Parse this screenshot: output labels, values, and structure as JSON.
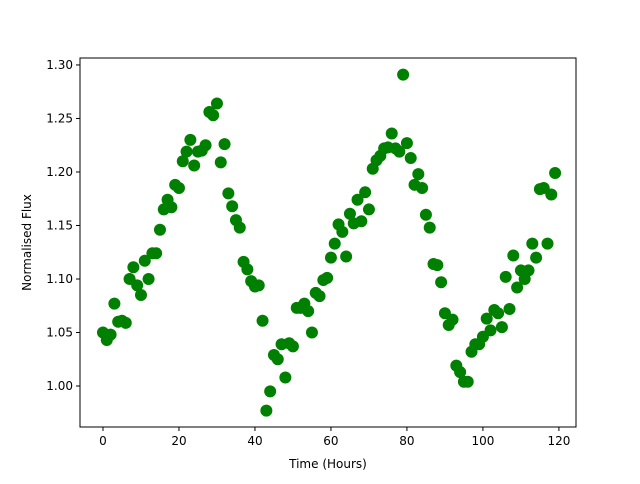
{
  "chart_data": {
    "type": "scatter",
    "title": "",
    "xlabel": "Time (Hours)",
    "ylabel": "Normalised Flux",
    "xlim": [
      -6.05,
      124.5
    ],
    "ylim": [
      0.9617,
      1.3065
    ],
    "xticks": [
      0,
      20,
      40,
      60,
      80,
      100,
      120
    ],
    "xtick_labels": [
      "0",
      "20",
      "40",
      "60",
      "80",
      "100",
      "120"
    ],
    "yticks": [
      1.0,
      1.05,
      1.1,
      1.15,
      1.2,
      1.25,
      1.3
    ],
    "ytick_labels": [
      "1.00",
      "1.05",
      "1.10",
      "1.15",
      "1.20",
      "1.25",
      "1.30"
    ],
    "grid": false,
    "marker_color": "#008000",
    "x": [
      0,
      1,
      2,
      3,
      4,
      5,
      6,
      7,
      8,
      9,
      10,
      11,
      12,
      13,
      14,
      15,
      16,
      17,
      18,
      19,
      20,
      21,
      22,
      23,
      24,
      25,
      26,
      27,
      28,
      29,
      30,
      31,
      32,
      33,
      34,
      35,
      36,
      37,
      38,
      39,
      40,
      41,
      42,
      43,
      44,
      45,
      46,
      47,
      48,
      49,
      50,
      51,
      52,
      53,
      54,
      55,
      56,
      57,
      58,
      59,
      60,
      61,
      62,
      63,
      64,
      65,
      66,
      67,
      68,
      69,
      70,
      71,
      72,
      73,
      74,
      75,
      76,
      77,
      78,
      79,
      80,
      81,
      82,
      83,
      84,
      85,
      86,
      87,
      88,
      89,
      90,
      91,
      92,
      93,
      94,
      95,
      96,
      97,
      98,
      99,
      100,
      101,
      102,
      103,
      104,
      105,
      106,
      107,
      108,
      109,
      110,
      111,
      112,
      113,
      114,
      115,
      116,
      117,
      118,
      119
    ],
    "y": [
      1.05,
      1.043,
      1.048,
      1.077,
      1.06,
      1.061,
      1.059,
      1.1,
      1.111,
      1.094,
      1.085,
      1.117,
      1.1,
      1.124,
      1.124,
      1.146,
      1.165,
      1.174,
      1.167,
      1.188,
      1.185,
      1.21,
      1.219,
      1.23,
      1.206,
      1.219,
      1.22,
      1.225,
      1.256,
      1.253,
      1.264,
      1.209,
      1.226,
      1.18,
      1.168,
      1.155,
      1.148,
      1.116,
      1.109,
      1.098,
      1.093,
      1.094,
      1.061,
      0.977,
      0.995,
      1.029,
      1.025,
      1.039,
      1.008,
      1.04,
      1.037,
      1.073,
      1.073,
      1.077,
      1.07,
      1.05,
      1.087,
      1.084,
      1.099,
      1.101,
      1.12,
      1.133,
      1.151,
      1.144,
      1.121,
      1.161,
      1.152,
      1.174,
      1.154,
      1.181,
      1.165,
      1.203,
      1.211,
      1.215,
      1.222,
      1.223,
      1.236,
      1.222,
      1.219,
      1.291,
      1.227,
      1.213,
      1.188,
      1.198,
      1.185,
      1.16,
      1.148,
      1.114,
      1.113,
      1.097,
      1.068,
      1.057,
      1.062,
      1.019,
      1.013,
      1.004,
      1.004,
      1.032,
      1.039,
      1.039,
      1.046,
      1.063,
      1.052,
      1.071,
      1.068,
      1.055,
      1.102,
      1.072,
      1.122,
      1.092,
      1.108,
      1.1,
      1.108,
      1.133,
      1.12,
      1.184,
      1.185,
      1.133,
      1.179,
      1.199
    ]
  }
}
